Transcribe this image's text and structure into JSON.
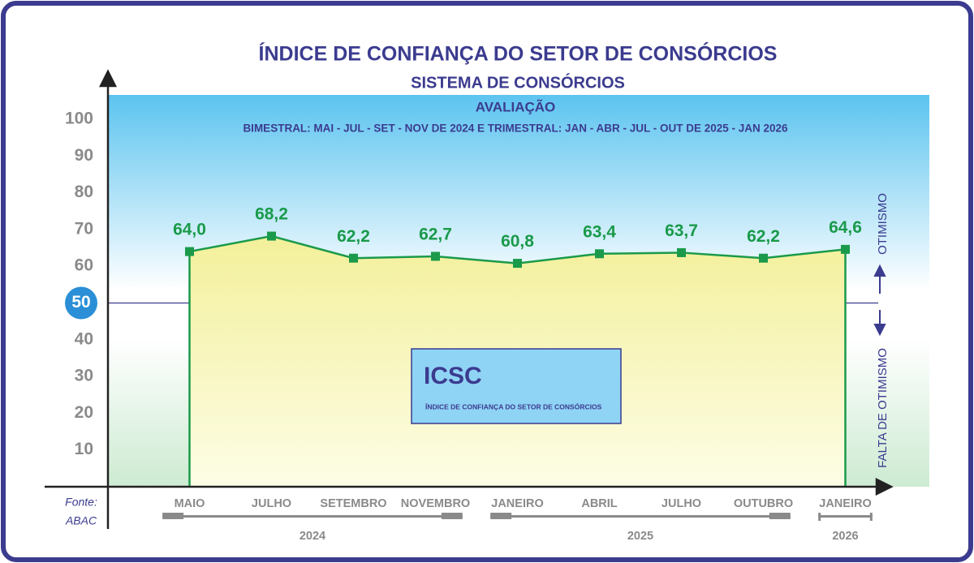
{
  "chart_data": {
    "type": "line",
    "title": "ÍNDICE DE CONFIANÇA DO SETOR DE CONSÓRCIOS",
    "subtitle": "SISTEMA DE CONSÓRCIOS",
    "heading": "AVALIAÇÃO",
    "description": "BIMESTRAL: MAI - JUL - SET - NOV DE 2024 E TRIMESTRAL: JAN - ABR - JUL - OUT DE 2025 - JAN 2026",
    "categories": [
      "MAIO",
      "JULHO",
      "SETEMBRO",
      "NOVEMBRO",
      "JANEIRO",
      "ABRIL",
      "JULHO",
      "OUTUBRO",
      "JANEIRO"
    ],
    "groups": [
      {
        "label": "2024",
        "count": 4
      },
      {
        "label": "2025",
        "count": 4
      },
      {
        "label": "2026",
        "count": 1
      }
    ],
    "values": [
      64.0,
      68.2,
      62.2,
      62.7,
      60.8,
      63.4,
      63.7,
      62.2,
      64.6
    ],
    "value_labels": [
      "64,0",
      "68,2",
      "62,2",
      "62,7",
      "60,8",
      "63,4",
      "63,7",
      "62,2",
      "64,6"
    ],
    "color": "#1a9a4a",
    "ylim": [
      0,
      106
    ],
    "yticks": [
      10,
      20,
      30,
      40,
      50,
      60,
      70,
      80,
      90,
      100
    ],
    "reference_line": 50,
    "annotations": {
      "upper": "OTIMISMO",
      "lower": "FALTA DE OTIMISMO"
    },
    "box": {
      "title": "ICSC",
      "text": "ÍNDICE DE CONFIANÇA DO SETOR DE CONSÓRCIOS"
    },
    "source": {
      "label": "Fonte:",
      "name": "ABAC"
    }
  }
}
